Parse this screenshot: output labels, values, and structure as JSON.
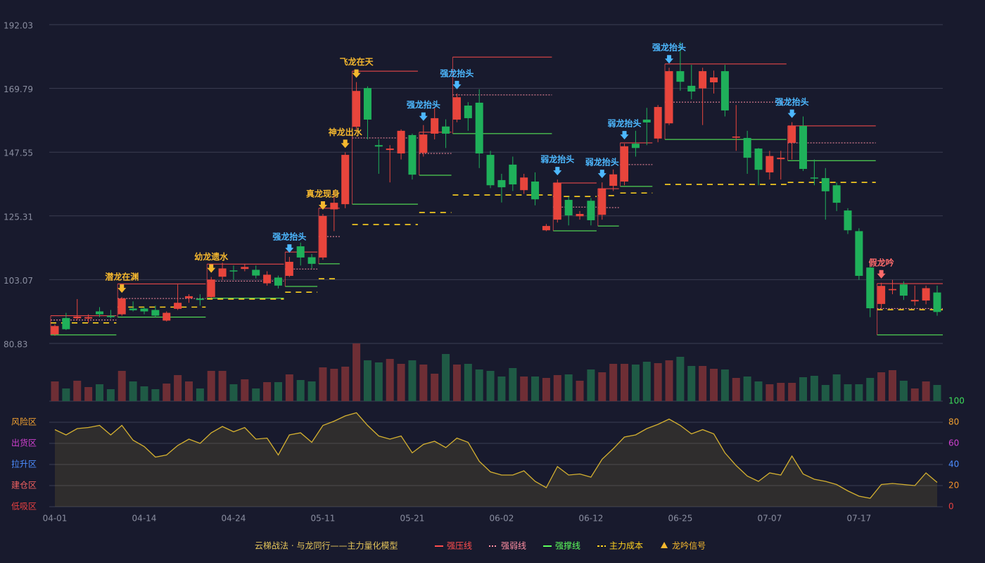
{
  "chart_data": {
    "type": "candlestick",
    "categories": [
      "04-01",
      null,
      null,
      null,
      null,
      null,
      null,
      null,
      "04-14",
      null,
      null,
      null,
      null,
      null,
      null,
      null,
      "04-24",
      null,
      null,
      null,
      null,
      null,
      null,
      null,
      "05-11",
      null,
      null,
      null,
      null,
      null,
      null,
      null,
      "05-21",
      null,
      null,
      null,
      null,
      null,
      null,
      null,
      "06-02",
      null,
      null,
      null,
      null,
      null,
      null,
      null,
      "06-12",
      null,
      null,
      null,
      null,
      null,
      null,
      null,
      "06-25",
      null,
      null,
      null,
      null,
      null,
      null,
      null,
      "07-07",
      null,
      null,
      null,
      null,
      null,
      null,
      null,
      "07-17",
      null,
      null,
      null,
      null,
      null,
      null,
      null
    ],
    "open": [
      84,
      89.7,
      89.6,
      89.5,
      92,
      90.5,
      91,
      93,
      93,
      92.5,
      88.8,
      92.9,
      96.6,
      96.5,
      97,
      104.1,
      106.3,
      106.8,
      106.5,
      101.8,
      103.8,
      104.4,
      114.7,
      110.9,
      110.8,
      127.6,
      129.4,
      156.4,
      169.9,
      150,
      148.3,
      147.1,
      153.5,
      147.3,
      154,
      156.5,
      158.9,
      163.8,
      164.8,
      146.6,
      137.8,
      143.2,
      134.3,
      137.3,
      120.3,
      124,
      130.9,
      125.2,
      130.6,
      125.7,
      135.8,
      137.3,
      150.5,
      158.9,
      152.3,
      157.6,
      175.8,
      170.7,
      169.8,
      171.9,
      175.8,
      152.6,
      152.5,
      148.8,
      140.5,
      145.1,
      150.8,
      156.7,
      138.7,
      138.5,
      136,
      127.2,
      120,
      107.3,
      94.6,
      99.4,
      101.4,
      95.5,
      95.8,
      98.6
    ],
    "high": [
      87.5,
      91.5,
      96.3,
      91,
      93.5,
      92.5,
      97,
      95.5,
      93.5,
      94,
      92,
      101.4,
      98,
      98,
      104,
      109,
      108,
      108.5,
      108,
      106,
      104.5,
      111,
      116,
      112,
      126,
      134,
      147.5,
      172,
      170.5,
      152,
      150,
      155.5,
      154,
      157,
      163,
      159,
      168,
      165,
      169.5,
      148,
      140,
      146,
      140,
      140.5,
      122.5,
      138,
      132,
      127,
      131.5,
      137,
      141.5,
      150.5,
      155,
      163,
      164,
      177,
      186,
      178,
      177,
      176,
      178,
      164,
      155,
      149,
      148,
      148,
      158,
      160,
      145,
      142,
      137,
      128,
      121,
      110,
      102,
      103,
      102.5,
      101,
      101,
      101
    ],
    "low": [
      83.5,
      85.5,
      89,
      88,
      90,
      89.5,
      90.5,
      92,
      91,
      90,
      88.5,
      92.5,
      95,
      94,
      96.5,
      103,
      103,
      106,
      103.5,
      101,
      100,
      104,
      108,
      107,
      110,
      120,
      128,
      155,
      152,
      140,
      137,
      145,
      138,
      146,
      152,
      149,
      158,
      155,
      142,
      135,
      130,
      134,
      133,
      129,
      120,
      123,
      122,
      124,
      122,
      124,
      134,
      136,
      146,
      150,
      151,
      157,
      169,
      166,
      157,
      168,
      160,
      148,
      140,
      136,
      138,
      138,
      145,
      141,
      136,
      124,
      127,
      119,
      103,
      90,
      93,
      98,
      96,
      94,
      94.5,
      90.5
    ],
    "close": [
      86.9,
      85.8,
      90.2,
      90,
      91,
      90,
      96.5,
      92.4,
      92,
      90.5,
      91.5,
      95,
      97.3,
      96,
      103.1,
      107,
      106,
      107.5,
      104.5,
      104.8,
      101,
      109.3,
      110.8,
      108.6,
      125.3,
      129.9,
      146.6,
      168.9,
      158.9,
      149.5,
      148.8,
      155,
      139.7,
      153.7,
      159.4,
      154,
      166.7,
      159.4,
      147.1,
      136,
      135.3,
      136.3,
      138.7,
      131.1,
      121.8,
      136.8,
      125.5,
      126,
      123.8,
      134.8,
      139.8,
      149.6,
      149,
      157.9,
      163.3,
      175.8,
      172.1,
      168.7,
      175.8,
      173.6,
      162.1,
      153,
      145.6,
      141.4,
      146.2,
      145.6,
      156.7,
      141.7,
      138.5,
      133.9,
      129.9,
      120.3,
      104.4,
      93.1,
      100.9,
      99.8,
      97.5,
      96,
      100.1,
      91.8
    ],
    "up_color": "#e8453c",
    "down_color": "#1fb05a",
    "ylim": [
      80.83,
      192.03
    ],
    "yticks": [
      80.83,
      103.07,
      125.31,
      147.55,
      169.79,
      192.03
    ],
    "grid": true,
    "volume": {
      "values": [
        28,
        18,
        29,
        20,
        24,
        17,
        43,
        28,
        21,
        17,
        25,
        37,
        28,
        18,
        43,
        43,
        24,
        31,
        18,
        27,
        27,
        38,
        30,
        28,
        48,
        46,
        49,
        82,
        58,
        55,
        60,
        53,
        58,
        52,
        39,
        67,
        52,
        53,
        45,
        43,
        35,
        47,
        35,
        35,
        33,
        37,
        38,
        29,
        45,
        41,
        53,
        53,
        52,
        56,
        54,
        58,
        63,
        50,
        50,
        46,
        45,
        33,
        35,
        28,
        24,
        26,
        26,
        34,
        36,
        23,
        38,
        24,
        24,
        33,
        41,
        44,
        29,
        18,
        28,
        23
      ],
      "ylim": [
        0,
        82
      ],
      "up_color": "#6e2e35",
      "down_color": "#1f5a45"
    },
    "indicator": {
      "values": [
        73,
        68,
        74,
        75,
        77,
        68,
        77,
        63,
        57,
        47,
        49,
        58,
        64,
        60,
        70,
        76,
        71,
        75,
        64,
        65,
        49,
        68,
        70,
        61,
        77,
        81,
        86,
        89,
        77,
        67,
        64,
        67,
        51,
        59,
        62,
        56,
        65,
        61,
        43,
        33,
        30,
        30,
        34,
        24,
        18,
        38,
        30,
        31,
        28,
        45,
        55,
        66,
        68,
        74,
        78,
        83,
        77,
        69,
        73,
        69,
        51,
        39,
        29,
        24,
        32,
        30,
        48,
        31,
        26,
        24,
        21,
        15,
        10,
        8,
        21,
        22,
        21,
        20,
        32,
        23
      ],
      "color": "#d4b030",
      "ylim": [
        0,
        100
      ],
      "yticks": [
        0,
        20,
        40,
        60,
        80,
        100
      ],
      "ytick_colors": [
        "#e84040",
        "#f0902a",
        "#4d8dff",
        "#d040d0",
        "#f0a030",
        "#3ddc5a"
      ],
      "zones": [
        {
          "label": "风险区",
          "value": 80,
          "color": "#f0a030"
        },
        {
          "label": "出货区",
          "value": 60,
          "color": "#d040d0"
        },
        {
          "label": "拉升区",
          "value": 40,
          "color": "#4d8dff"
        },
        {
          "label": "建仓区",
          "value": 20,
          "color": "#f06060"
        },
        {
          "label": "低吸区",
          "value": 0,
          "color": "#e84040"
        }
      ]
    },
    "signals": [
      {
        "index": 6,
        "text": "潜龙在渊",
        "color": "#f5b82e"
      },
      {
        "index": 14,
        "text": "幼龙遗水",
        "color": "#f5b82e"
      },
      {
        "index": 21,
        "text": "强龙抬头",
        "color": "#4db8ff"
      },
      {
        "index": 24,
        "text": "真龙现身",
        "color": "#f5b82e"
      },
      {
        "index": 26,
        "text": "神龙出水",
        "color": "#f5b82e"
      },
      {
        "index": 27,
        "text": "飞龙在天",
        "color": "#f5b82e"
      },
      {
        "index": 33,
        "text": "强龙抬头",
        "color": "#4db8ff"
      },
      {
        "index": 36,
        "text": "强龙抬头",
        "color": "#4db8ff"
      },
      {
        "index": 45,
        "text": "弱龙抬头",
        "color": "#4db8ff"
      },
      {
        "index": 49,
        "text": "弱龙抬头",
        "color": "#4db8ff"
      },
      {
        "index": 51,
        "text": "弱龙抬头",
        "color": "#4db8ff"
      },
      {
        "index": 55,
        "text": "强龙抬头",
        "color": "#4db8ff"
      },
      {
        "index": 66,
        "text": "强龙抬头",
        "color": "#4db8ff"
      },
      {
        "index": 74,
        "text": "假龙吟",
        "color": "#ff6b6b"
      }
    ],
    "levels": [
      {
        "start": 0,
        "end": 5,
        "pressure": 90.5,
        "pivot": 89,
        "support": 83.8,
        "cost": 88
      },
      {
        "start": 6,
        "end": 13,
        "pressure": 101.6,
        "pivot": 96.5,
        "support": 90,
        "cost": 93.5
      },
      {
        "start": 14,
        "end": 20,
        "pressure": 108.5,
        "pivot": 102.6,
        "support": 96.6,
        "cost": 96.3
      },
      {
        "start": 21,
        "end": 23,
        "pressure": 112.7,
        "pivot": 106.8,
        "support": 100.7,
        "cost": 98.7
      },
      {
        "start": 24,
        "end": 25,
        "pressure": 128,
        "pivot": 118.1,
        "support": 108.6,
        "cost": 103.4
      },
      {
        "start": 27,
        "end": 32,
        "pressure": 175.8,
        "pivot": 152.5,
        "support": 129.4,
        "cost": 122.3
      },
      {
        "start": 33,
        "end": 35,
        "pressure": 154.5,
        "pivot": 147.1,
        "support": 139.5,
        "cost": 126.5
      },
      {
        "start": 36,
        "end": 44,
        "pressure": 180.7,
        "pivot": 167.5,
        "support": 154,
        "cost": 132.6
      },
      {
        "start": 45,
        "end": 48,
        "pressure": 136.8,
        "pivot": 128.4,
        "support": 120.1,
        "cost": 132.1
      },
      {
        "start": 49,
        "end": 50,
        "pressure": 134.8,
        "pivot": 128.2,
        "support": 121.8,
        "cost": 132.4
      },
      {
        "start": 51,
        "end": 53,
        "pressure": 150.8,
        "pivot": 143.2,
        "support": 135.6,
        "cost": 133.3
      },
      {
        "start": 55,
        "end": 65,
        "pressure": 178.3,
        "pivot": 165,
        "support": 152,
        "cost": 136.3
      },
      {
        "start": 66,
        "end": 73,
        "pressure": 156.7,
        "pivot": 150.8,
        "support": 144.6,
        "cost": 137
      },
      {
        "start": 74,
        "end": 79,
        "pressure": 101.7,
        "pivot": 93,
        "support": 83.8,
        "cost": 92.6
      }
    ],
    "legend": {
      "title": "云梯战法 · 与龙同行——主力量化模型",
      "items": [
        {
          "key": "pressure",
          "name": "强压线",
          "color": "#ff4d4d"
        },
        {
          "key": "pivot",
          "name": "强弱线",
          "color": "#ff8fa3"
        },
        {
          "key": "support",
          "name": "强撑线",
          "color": "#5cff5c"
        },
        {
          "key": "cost",
          "name": "主力成本",
          "color": "#ffd21f"
        },
        {
          "key": "signal",
          "name": "龙吟信号",
          "color": "#f5b82e"
        }
      ]
    }
  }
}
